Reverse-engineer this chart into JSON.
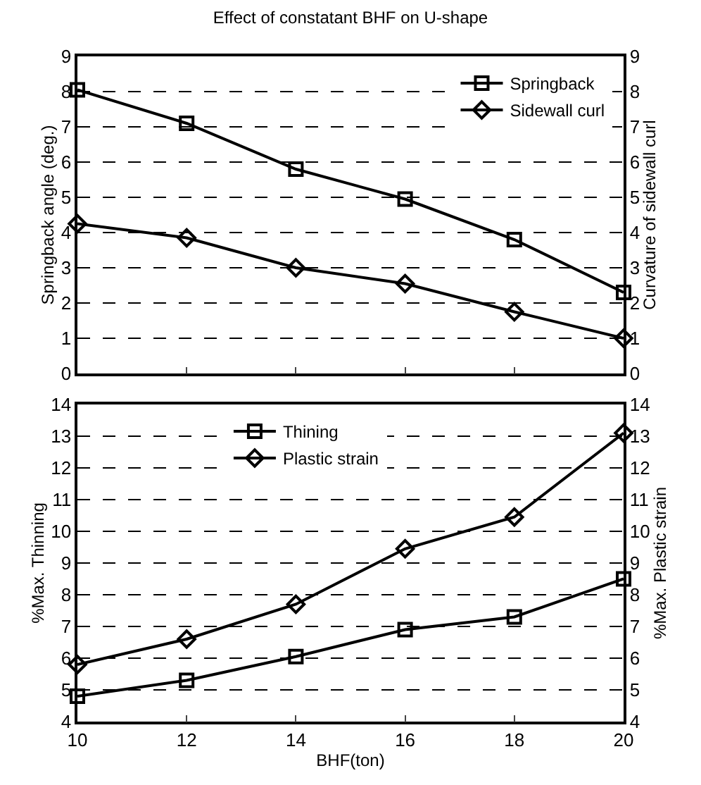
{
  "chart_data": [
    {
      "type": "line",
      "title": "Effect of constatant BHF on U-shape",
      "ylabel": "Springback angle (deg.)",
      "y2label": "Curvature of sidewall curl",
      "x": [
        10,
        12,
        14,
        16,
        18,
        20
      ],
      "xlim": [
        10,
        20
      ],
      "xticks": [
        10,
        12,
        14,
        16,
        18,
        20
      ],
      "tick_labels": "y",
      "ylim": [
        0,
        9
      ],
      "yticks": [
        0,
        1,
        2,
        3,
        4,
        5,
        6,
        7,
        8,
        9
      ],
      "y2lim": [
        0,
        9
      ],
      "y2ticks": [
        0,
        1,
        2,
        3,
        4,
        5,
        6,
        7,
        8,
        9
      ],
      "grid": "y",
      "legend": "top right",
      "line_style": "solid",
      "series": [
        {
          "name": "Springback",
          "color": "#000000",
          "marker": "square",
          "values": [
            8.05,
            7.1,
            5.8,
            4.95,
            3.8,
            2.3
          ]
        },
        {
          "name": "Sidewall curl",
          "color": "#000000",
          "marker": "diamond",
          "axis": "y2",
          "values": [
            4.25,
            3.85,
            3.0,
            2.55,
            1.75,
            1.0
          ]
        }
      ]
    },
    {
      "type": "line",
      "xlabel": "BHF(ton)",
      "ylabel": "%Max. Thinning",
      "y2label": "%Max. Plastic strain",
      "x": [
        10,
        12,
        14,
        16,
        18,
        20
      ],
      "xlim": [
        10,
        20
      ],
      "xticks": [
        10,
        12,
        14,
        16,
        18,
        20
      ],
      "ylim": [
        4,
        14
      ],
      "yticks": [
        4,
        5,
        6,
        7,
        8,
        9,
        10,
        11,
        12,
        13,
        14
      ],
      "y2lim": [
        4,
        14
      ],
      "y2ticks": [
        4,
        5,
        6,
        7,
        8,
        9,
        10,
        11,
        12,
        13,
        14
      ],
      "grid": "y",
      "legend": "top",
      "line_style": "solid",
      "series": [
        {
          "name": "Thining",
          "color": "#000000",
          "marker": "square",
          "values": [
            4.8,
            5.3,
            6.05,
            6.9,
            7.3,
            8.5
          ]
        },
        {
          "name": "Plastic strain",
          "color": "#000000",
          "marker": "diamond",
          "axis": "y2",
          "values": [
            5.8,
            6.6,
            7.7,
            9.45,
            10.45,
            13.1
          ]
        }
      ]
    }
  ]
}
